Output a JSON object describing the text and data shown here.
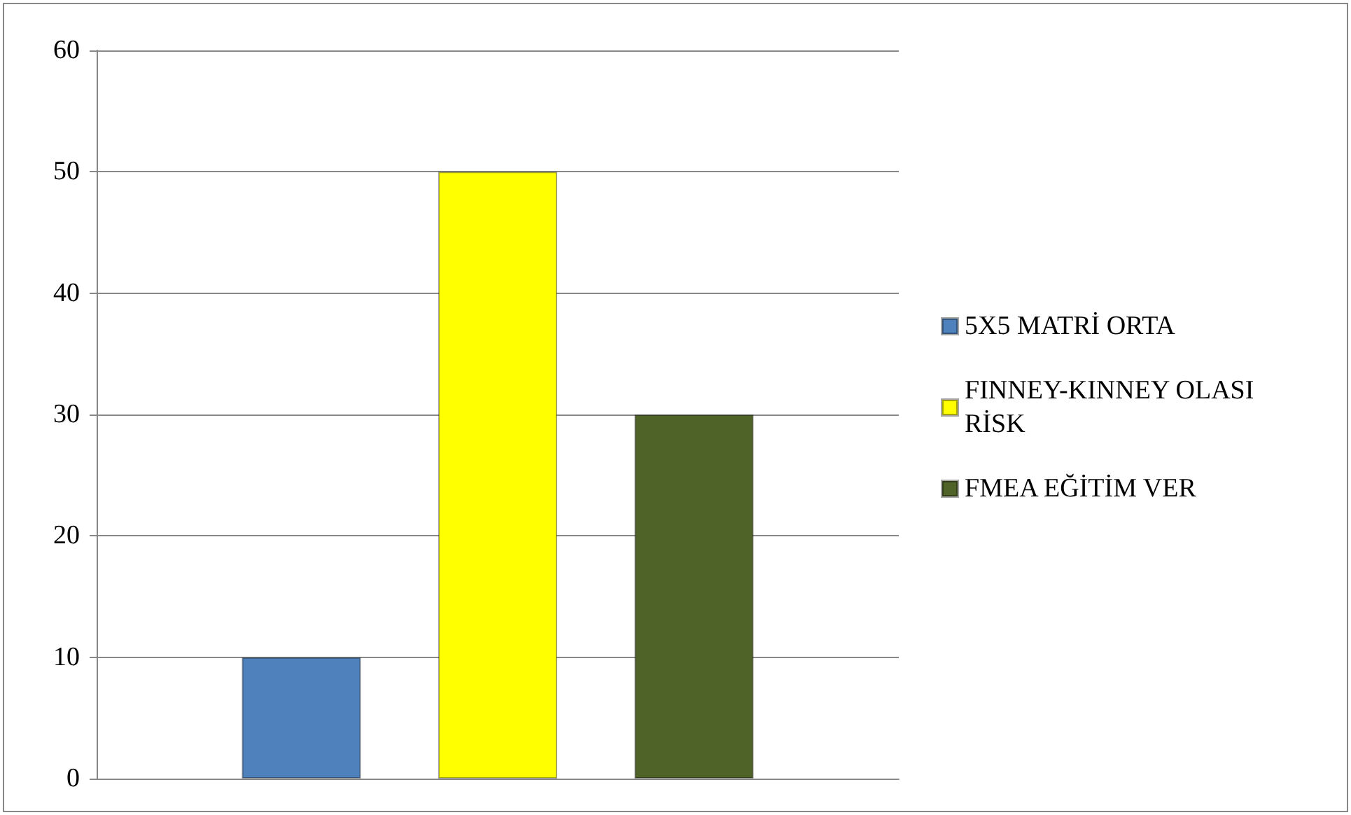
{
  "chart_data": {
    "type": "bar",
    "categories": [
      null
    ],
    "series": [
      {
        "name": "5X5 MATRİ ORTA",
        "color": "#4f81bd",
        "values": [
          10
        ]
      },
      {
        "name": "FINNEY-KINNEY OLASI RİSK",
        "color": "#ffff00",
        "values": [
          50
        ]
      },
      {
        "name": "FMEA EĞİTİM VER",
        "color": "#4f6228",
        "values": [
          30
        ]
      }
    ],
    "ylim": [
      0,
      60
    ],
    "yticks": [
      0,
      10,
      20,
      30,
      40,
      50,
      60
    ],
    "grid": "y",
    "legend": "right"
  }
}
